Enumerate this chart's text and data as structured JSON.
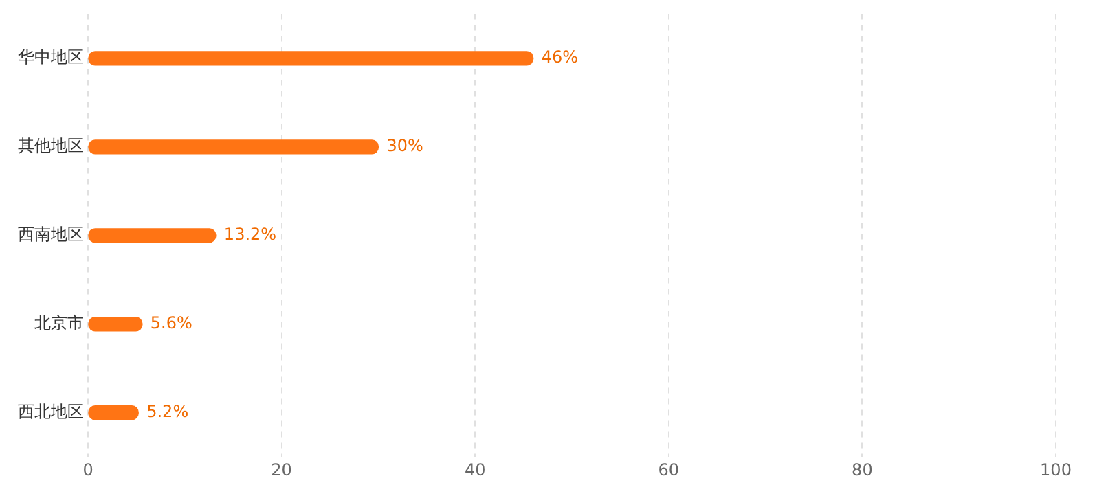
{
  "chart_data": {
    "type": "bar",
    "orientation": "horizontal",
    "categories": [
      "华中地区",
      "其他地区",
      "西南地区",
      "北京市",
      "西北地区"
    ],
    "values": [
      46,
      30,
      13.2,
      5.6,
      5.2
    ],
    "value_labels": [
      "46%",
      "30%",
      "13.2%",
      "5.6%",
      "5.2%"
    ],
    "color": "#ff7414",
    "xlim": [
      0,
      100
    ],
    "xticks": [
      0,
      20,
      40,
      60,
      80,
      100
    ],
    "grid": "x",
    "legend": false
  }
}
